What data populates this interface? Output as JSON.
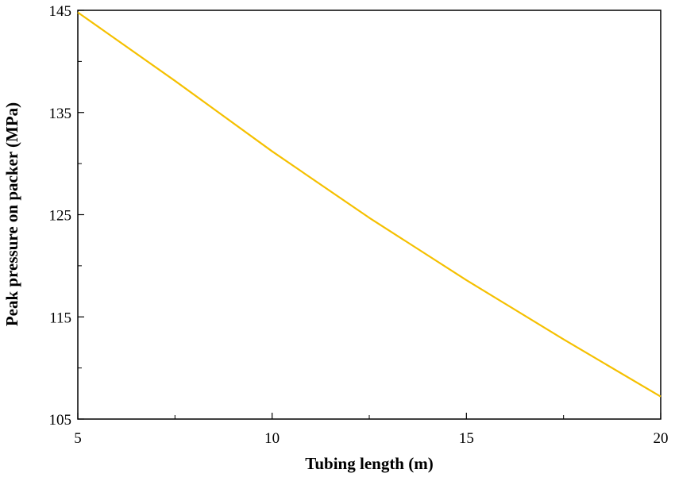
{
  "chart_data": {
    "type": "line",
    "title": "",
    "xlabel": "Tubing length (m)",
    "ylabel": "Peak pressure on packer (MPa)",
    "xlim": [
      5,
      20
    ],
    "ylim": [
      105,
      145
    ],
    "x_ticks": [
      5,
      10,
      15,
      20
    ],
    "x_minor_ticks": [
      7.5,
      12.5,
      17.5
    ],
    "y_ticks": [
      105,
      115,
      125,
      135,
      145
    ],
    "y_minor_ticks": [
      110,
      120,
      130,
      140
    ],
    "grid": false,
    "legend": "none",
    "series": [
      {
        "color": "#f5c000",
        "x": [
          5,
          7.5,
          10,
          12.5,
          15,
          17.5,
          20
        ],
        "y": [
          144.8,
          138.1,
          131.2,
          124.7,
          118.6,
          112.8,
          107.2
        ]
      }
    ]
  }
}
